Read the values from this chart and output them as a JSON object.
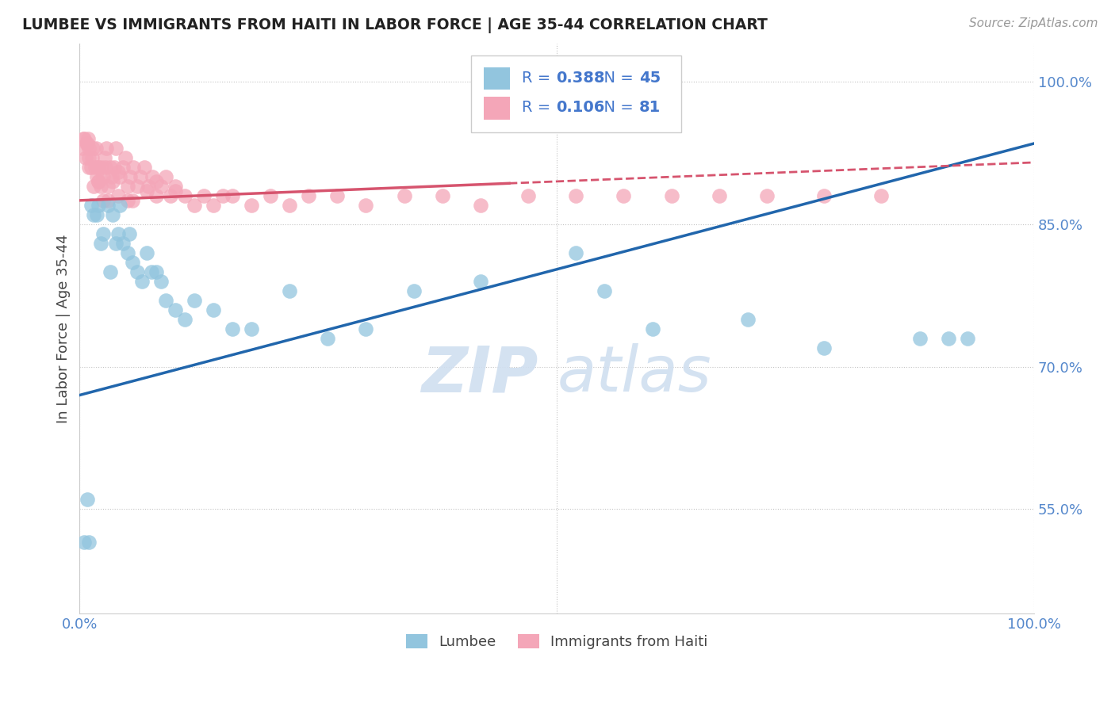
{
  "title": "LUMBEE VS IMMIGRANTS FROM HAITI IN LABOR FORCE | AGE 35-44 CORRELATION CHART",
  "source": "Source: ZipAtlas.com",
  "ylabel": "In Labor Force | Age 35-44",
  "xlim": [
    0.0,
    1.0
  ],
  "ylim": [
    0.44,
    1.04
  ],
  "y_ticks": [
    0.55,
    0.7,
    0.85,
    1.0
  ],
  "y_tick_labels": [
    "55.0%",
    "70.0%",
    "85.0%",
    "100.0%"
  ],
  "x_ticks": [
    0.0,
    0.5,
    1.0
  ],
  "x_tick_labels": [
    "0.0%",
    "",
    "100.0%"
  ],
  "lumbee_R": "0.388",
  "lumbee_N": "45",
  "haiti_R": "0.106",
  "haiti_N": "81",
  "blue_color": "#92c5de",
  "pink_color": "#f4a6b8",
  "blue_line_color": "#2166ac",
  "pink_line_color": "#d6546e",
  "lumbee_x": [
    0.005,
    0.008,
    0.01,
    0.012,
    0.015,
    0.018,
    0.02,
    0.022,
    0.025,
    0.03,
    0.032,
    0.035,
    0.038,
    0.04,
    0.042,
    0.045,
    0.05,
    0.052,
    0.055,
    0.06,
    0.065,
    0.07,
    0.075,
    0.08,
    0.085,
    0.09,
    0.1,
    0.11,
    0.12,
    0.14,
    0.16,
    0.18,
    0.22,
    0.26,
    0.3,
    0.35,
    0.42,
    0.52,
    0.55,
    0.6,
    0.7,
    0.78,
    0.88,
    0.91,
    0.93
  ],
  "lumbee_y": [
    0.515,
    0.56,
    0.515,
    0.87,
    0.86,
    0.86,
    0.87,
    0.83,
    0.84,
    0.87,
    0.8,
    0.86,
    0.83,
    0.84,
    0.87,
    0.83,
    0.82,
    0.84,
    0.81,
    0.8,
    0.79,
    0.82,
    0.8,
    0.8,
    0.79,
    0.77,
    0.76,
    0.75,
    0.77,
    0.76,
    0.74,
    0.74,
    0.78,
    0.73,
    0.74,
    0.78,
    0.79,
    0.82,
    0.78,
    0.74,
    0.75,
    0.72,
    0.73,
    0.73,
    0.73
  ],
  "haiti_x": [
    0.003,
    0.004,
    0.005,
    0.006,
    0.007,
    0.008,
    0.009,
    0.01,
    0.01,
    0.01,
    0.012,
    0.013,
    0.014,
    0.015,
    0.016,
    0.017,
    0.018,
    0.019,
    0.02,
    0.02,
    0.022,
    0.023,
    0.025,
    0.026,
    0.027,
    0.028,
    0.03,
    0.032,
    0.034,
    0.036,
    0.038,
    0.04,
    0.042,
    0.045,
    0.048,
    0.05,
    0.053,
    0.056,
    0.06,
    0.064,
    0.068,
    0.072,
    0.076,
    0.08,
    0.085,
    0.09,
    0.095,
    0.1,
    0.11,
    0.12,
    0.13,
    0.14,
    0.16,
    0.18,
    0.2,
    0.22,
    0.24,
    0.27,
    0.3,
    0.34,
    0.38,
    0.42,
    0.47,
    0.52,
    0.57,
    0.62,
    0.67,
    0.72,
    0.78,
    0.84,
    0.15,
    0.08,
    0.05,
    0.03,
    0.02,
    0.1,
    0.07,
    0.04,
    0.055,
    0.035,
    0.025
  ],
  "haiti_y": [
    0.93,
    0.94,
    0.94,
    0.92,
    0.935,
    0.935,
    0.94,
    0.91,
    0.92,
    0.93,
    0.91,
    0.92,
    0.93,
    0.89,
    0.91,
    0.93,
    0.9,
    0.91,
    0.895,
    0.91,
    0.89,
    0.91,
    0.9,
    0.92,
    0.91,
    0.93,
    0.89,
    0.91,
    0.9,
    0.91,
    0.93,
    0.88,
    0.9,
    0.91,
    0.92,
    0.89,
    0.9,
    0.91,
    0.89,
    0.9,
    0.91,
    0.89,
    0.9,
    0.88,
    0.89,
    0.9,
    0.88,
    0.89,
    0.88,
    0.87,
    0.88,
    0.87,
    0.88,
    0.87,
    0.88,
    0.87,
    0.88,
    0.88,
    0.87,
    0.88,
    0.88,
    0.87,
    0.88,
    0.88,
    0.88,
    0.88,
    0.88,
    0.88,
    0.88,
    0.88,
    0.88,
    0.895,
    0.875,
    0.875,
    0.895,
    0.885,
    0.885,
    0.905,
    0.875,
    0.895,
    0.875
  ]
}
